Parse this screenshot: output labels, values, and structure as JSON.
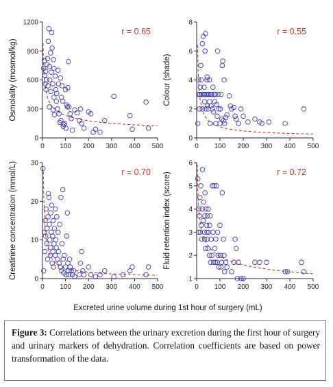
{
  "figure": {
    "xlabel": "Excreted urine volume during 1st hour of surgery (mL)"
  },
  "caption": {
    "label": "Figure 3:",
    "text": "Correlations between the urinary excretion during the first hour of surgery and urinary markers of dehydration. Correlation coefficients are based on power transformation of the data."
  },
  "colors": {
    "marker": "#3a3aa8",
    "fit": "#c0392b",
    "axis": "#222222"
  },
  "chart_data": [
    {
      "type": "scatter",
      "ylabel": "Osmolality (mosmol/kg)",
      "annotation": "r = 0.65",
      "xlim": [
        0,
        500
      ],
      "ylim": [
        0,
        1200
      ],
      "xticks": [
        0,
        100,
        200,
        300,
        400,
        500
      ],
      "yticks": [
        0,
        300,
        600,
        900,
        1200
      ],
      "fit": {
        "a": 1400,
        "b": -0.39
      },
      "points": [
        [
          5,
          720
        ],
        [
          8,
          800
        ],
        [
          10,
          650
        ],
        [
          12,
          560
        ],
        [
          14,
          690
        ],
        [
          15,
          500
        ],
        [
          18,
          600
        ],
        [
          20,
          760
        ],
        [
          22,
          820
        ],
        [
          24,
          540
        ],
        [
          25,
          1000
        ],
        [
          28,
          1130
        ],
        [
          30,
          740
        ],
        [
          30,
          320
        ],
        [
          32,
          600
        ],
        [
          35,
          880
        ],
        [
          36,
          480
        ],
        [
          38,
          680
        ],
        [
          40,
          1090
        ],
        [
          42,
          930
        ],
        [
          45,
          560
        ],
        [
          46,
          290
        ],
        [
          48,
          810
        ],
        [
          50,
          720
        ],
        [
          50,
          420
        ],
        [
          52,
          240
        ],
        [
          55,
          640
        ],
        [
          58,
          500
        ],
        [
          60,
          380
        ],
        [
          62,
          460
        ],
        [
          65,
          300
        ],
        [
          68,
          700
        ],
        [
          70,
          560
        ],
        [
          72,
          250
        ],
        [
          75,
          160
        ],
        [
          78,
          620
        ],
        [
          80,
          180
        ],
        [
          82,
          420
        ],
        [
          85,
          540
        ],
        [
          88,
          380
        ],
        [
          90,
          120
        ],
        [
          92,
          140
        ],
        [
          95,
          150
        ],
        [
          100,
          500
        ],
        [
          102,
          100
        ],
        [
          105,
          340
        ],
        [
          108,
          320
        ],
        [
          110,
          520
        ],
        [
          112,
          790
        ],
        [
          115,
          320
        ],
        [
          120,
          250
        ],
        [
          125,
          200
        ],
        [
          130,
          80
        ],
        [
          140,
          290
        ],
        [
          150,
          260
        ],
        [
          160,
          180
        ],
        [
          165,
          300
        ],
        [
          170,
          150
        ],
        [
          180,
          100
        ],
        [
          200,
          270
        ],
        [
          210,
          250
        ],
        [
          220,
          60
        ],
        [
          230,
          90
        ],
        [
          250,
          60
        ],
        [
          270,
          180
        ],
        [
          310,
          430
        ],
        [
          380,
          230
        ],
        [
          390,
          90
        ],
        [
          450,
          370
        ],
        [
          460,
          100
        ]
      ]
    },
    {
      "type": "scatter",
      "ylabel": "Colour (shade)",
      "annotation": "r = 0.55",
      "xlim": [
        0,
        500
      ],
      "ylim": [
        0,
        8
      ],
      "xticks": [
        0,
        100,
        200,
        300,
        400,
        500
      ],
      "yticks": [
        0,
        2,
        4,
        6,
        8
      ],
      "fit": {
        "a": 16,
        "b": -0.66
      },
      "points": [
        [
          5,
          1
        ],
        [
          8,
          4
        ],
        [
          10,
          3
        ],
        [
          12,
          2
        ],
        [
          14,
          3
        ],
        [
          16,
          3.5
        ],
        [
          18,
          5
        ],
        [
          20,
          4
        ],
        [
          22,
          3
        ],
        [
          24,
          2
        ],
        [
          25,
          6.5
        ],
        [
          28,
          7
        ],
        [
          30,
          3
        ],
        [
          32,
          3.5
        ],
        [
          34,
          2.5
        ],
        [
          35,
          3
        ],
        [
          36,
          6
        ],
        [
          38,
          7.2
        ],
        [
          40,
          2
        ],
        [
          42,
          3
        ],
        [
          44,
          4
        ],
        [
          45,
          4.2
        ],
        [
          46,
          2.2
        ],
        [
          48,
          3
        ],
        [
          50,
          2
        ],
        [
          52,
          3
        ],
        [
          55,
          4
        ],
        [
          56,
          2.5
        ],
        [
          58,
          1
        ],
        [
          60,
          3
        ],
        [
          62,
          2.2
        ],
        [
          65,
          3
        ],
        [
          68,
          2
        ],
        [
          70,
          3.5
        ],
        [
          72,
          1.8
        ],
        [
          75,
          3
        ],
        [
          78,
          2.5
        ],
        [
          80,
          3
        ],
        [
          82,
          1
        ],
        [
          85,
          2.3
        ],
        [
          88,
          1.5
        ],
        [
          90,
          6
        ],
        [
          92,
          3
        ],
        [
          95,
          2
        ],
        [
          100,
          1
        ],
        [
          102,
          2
        ],
        [
          105,
          3
        ],
        [
          108,
          1.3
        ],
        [
          110,
          5
        ],
        [
          112,
          5.3
        ],
        [
          115,
          1.2
        ],
        [
          118,
          4
        ],
        [
          120,
          1
        ],
        [
          125,
          1.4
        ],
        [
          130,
          1.6
        ],
        [
          140,
          2.9
        ],
        [
          145,
          2.2
        ],
        [
          150,
          2
        ],
        [
          160,
          2.1
        ],
        [
          165,
          1.5
        ],
        [
          170,
          1.3
        ],
        [
          180,
          1
        ],
        [
          190,
          2
        ],
        [
          200,
          1.5
        ],
        [
          220,
          1.1
        ],
        [
          250,
          1.3
        ],
        [
          270,
          1.1
        ],
        [
          280,
          1
        ],
        [
          310,
          1.1
        ],
        [
          380,
          1
        ],
        [
          460,
          2
        ]
      ]
    },
    {
      "type": "scatter",
      "ylabel": "Creatinine concentration (mmol/L)",
      "annotation": "r = 0.70",
      "xlim": [
        0,
        500
      ],
      "ylim": [
        0,
        30
      ],
      "xticks": [
        0,
        100,
        200,
        300,
        400,
        500
      ],
      "yticks": [
        0,
        10,
        20,
        30
      ],
      "fit": {
        "a": 75,
        "b": -0.72
      },
      "points": [
        [
          2,
          28.5
        ],
        [
          5,
          2
        ],
        [
          8,
          12
        ],
        [
          10,
          7
        ],
        [
          12,
          15
        ],
        [
          14,
          11
        ],
        [
          16,
          18
        ],
        [
          18,
          9
        ],
        [
          20,
          13
        ],
        [
          22,
          5
        ],
        [
          24,
          16
        ],
        [
          25,
          22
        ],
        [
          28,
          21
        ],
        [
          30,
          14
        ],
        [
          32,
          10
        ],
        [
          34,
          6
        ],
        [
          35,
          8
        ],
        [
          36,
          17
        ],
        [
          38,
          12
        ],
        [
          40,
          19
        ],
        [
          42,
          4
        ],
        [
          44,
          11
        ],
        [
          45,
          7
        ],
        [
          46,
          15
        ],
        [
          48,
          3
        ],
        [
          50,
          9
        ],
        [
          52,
          13
        ],
        [
          55,
          6
        ],
        [
          56,
          18
        ],
        [
          58,
          10
        ],
        [
          60,
          8
        ],
        [
          62,
          16
        ],
        [
          65,
          5
        ],
        [
          68,
          12
        ],
        [
          70,
          7
        ],
        [
          72,
          4
        ],
        [
          75,
          14
        ],
        [
          78,
          3
        ],
        [
          80,
          21
        ],
        [
          82,
          2
        ],
        [
          85,
          9
        ],
        [
          88,
          23
        ],
        [
          90,
          5
        ],
        [
          92,
          1.5
        ],
        [
          95,
          6
        ],
        [
          100,
          3
        ],
        [
          102,
          1
        ],
        [
          105,
          11
        ],
        [
          108,
          17
        ],
        [
          110,
          4
        ],
        [
          112,
          2
        ],
        [
          115,
          1
        ],
        [
          118,
          5
        ],
        [
          120,
          3
        ],
        [
          125,
          2
        ],
        [
          130,
          1
        ],
        [
          135,
          2
        ],
        [
          140,
          0.5
        ],
        [
          160,
          1
        ],
        [
          165,
          4
        ],
        [
          170,
          7
        ],
        [
          175,
          2
        ],
        [
          180,
          1
        ],
        [
          200,
          3
        ],
        [
          210,
          1
        ],
        [
          230,
          0.5
        ],
        [
          250,
          1
        ],
        [
          270,
          2
        ],
        [
          310,
          0.5
        ],
        [
          350,
          1
        ],
        [
          380,
          2
        ],
        [
          390,
          3
        ],
        [
          450,
          1
        ],
        [
          460,
          3
        ]
      ]
    },
    {
      "type": "scatter",
      "ylabel": "Fluid retention index (score)",
      "annotation": "r = 0.72",
      "xlim": [
        0,
        500
      ],
      "ylim": [
        1,
        6
      ],
      "xticks": [
        0,
        100,
        200,
        300,
        400,
        500
      ],
      "yticks": [
        1,
        2,
        3,
        4,
        5,
        6
      ],
      "fit": {
        "a": 7.8,
        "b": -0.3
      },
      "points": [
        [
          5,
          5.3
        ],
        [
          8,
          3
        ],
        [
          10,
          4
        ],
        [
          12,
          3.7
        ],
        [
          14,
          4.5
        ],
        [
          16,
          3
        ],
        [
          18,
          5
        ],
        [
          20,
          3.3
        ],
        [
          22,
          2.7
        ],
        [
          24,
          4
        ],
        [
          25,
          5.7
        ],
        [
          28,
          3.5
        ],
        [
          30,
          4.3
        ],
        [
          32,
          3
        ],
        [
          34,
          2.7
        ],
        [
          35,
          3.7
        ],
        [
          36,
          4.7
        ],
        [
          38,
          2.3
        ],
        [
          40,
          4
        ],
        [
          42,
          3.3
        ],
        [
          44,
          3
        ],
        [
          45,
          2.7
        ],
        [
          46,
          3.7
        ],
        [
          48,
          2.3
        ],
        [
          50,
          4
        ],
        [
          52,
          3
        ],
        [
          55,
          2
        ],
        [
          56,
          3.3
        ],
        [
          58,
          3.7
        ],
        [
          60,
          1.7
        ],
        [
          62,
          2.7
        ],
        [
          65,
          2
        ],
        [
          68,
          5
        ],
        [
          70,
          3
        ],
        [
          72,
          1.7
        ],
        [
          75,
          5
        ],
        [
          78,
          2.3
        ],
        [
          80,
          1.7
        ],
        [
          82,
          2.7
        ],
        [
          85,
          5
        ],
        [
          88,
          1.7
        ],
        [
          90,
          3
        ],
        [
          92,
          2
        ],
        [
          95,
          1.5
        ],
        [
          100,
          3.3
        ],
        [
          102,
          2
        ],
        [
          105,
          1.5
        ],
        [
          108,
          1.7
        ],
        [
          110,
          4.7
        ],
        [
          115,
          2.7
        ],
        [
          118,
          2
        ],
        [
          120,
          1.3
        ],
        [
          125,
          1.7
        ],
        [
          130,
          1.5
        ],
        [
          150,
          1.3
        ],
        [
          160,
          1.7
        ],
        [
          165,
          2.7
        ],
        [
          170,
          2.3
        ],
        [
          175,
          1
        ],
        [
          180,
          1.7
        ],
        [
          190,
          1
        ],
        [
          200,
          1
        ],
        [
          250,
          1.7
        ],
        [
          270,
          1.7
        ],
        [
          300,
          1.7
        ],
        [
          380,
          1.3
        ],
        [
          390,
          1.3
        ],
        [
          450,
          1.7
        ],
        [
          460,
          1.3
        ]
      ]
    }
  ]
}
